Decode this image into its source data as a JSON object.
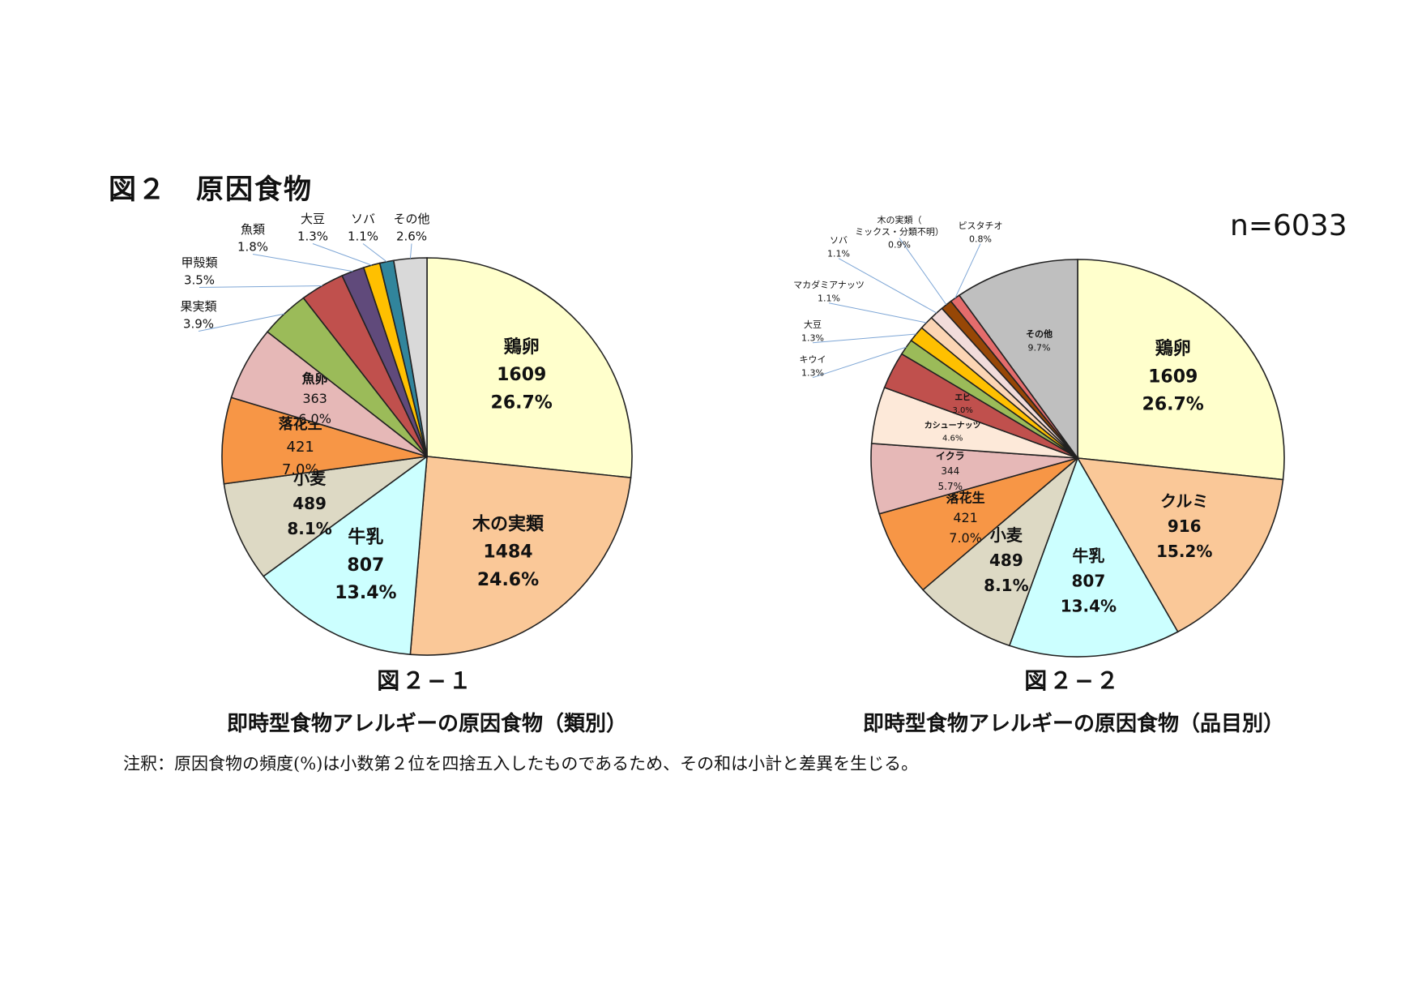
{
  "heading": "図２　原因食物",
  "n_label": "n=6033",
  "footnote": "注釈：原因食物の頻度(%)は小数第２位を四捨五入したものであるため、その和は小計と差異を生じる。",
  "chart_data": [
    {
      "type": "pie",
      "figure_number": "図２−１",
      "title": "即時型食物アレルギーの原因食物（類別）",
      "slices": [
        {
          "name": "鶏卵",
          "count": "1609",
          "pct": "26.7%",
          "value": 26.7,
          "color": "#FFFFCC",
          "label": "inside"
        },
        {
          "name": "木の実類",
          "count": "1484",
          "pct": "24.6%",
          "value": 24.6,
          "color": "#FAC898",
          "label": "inside"
        },
        {
          "name": "牛乳",
          "count": "807",
          "pct": "13.4%",
          "value": 13.4,
          "color": "#CCFFFF",
          "label": "inside"
        },
        {
          "name": "小麦",
          "count": "489",
          "pct": "8.1%",
          "value": 8.1,
          "color": "#DDD9C4",
          "label": "inside"
        },
        {
          "name": "落花生",
          "count": "421",
          "pct": "7.0%",
          "value": 7.0,
          "color": "#F79646",
          "label": "inside"
        },
        {
          "name": "魚卵",
          "count": "363",
          "pct": "6.0%",
          "value": 6.0,
          "color": "#E6B8B7",
          "label": "inside"
        },
        {
          "name": "果実類",
          "count": "",
          "pct": "3.9%",
          "value": 3.9,
          "color": "#9BBB59",
          "label": "outside"
        },
        {
          "name": "甲殻類",
          "count": "",
          "pct": "3.5%",
          "value": 3.5,
          "color": "#C0504D",
          "label": "outside"
        },
        {
          "name": "魚類",
          "count": "",
          "pct": "1.8%",
          "value": 1.8,
          "color": "#604A7B",
          "label": "outside"
        },
        {
          "name": "大豆",
          "count": "",
          "pct": "1.3%",
          "value": 1.3,
          "color": "#FFC000",
          "label": "outside"
        },
        {
          "name": "ソバ",
          "count": "",
          "pct": "1.1%",
          "value": 1.1,
          "color": "#31859C",
          "label": "outside"
        },
        {
          "name": "その他",
          "count": "",
          "pct": "2.6%",
          "value": 2.6,
          "color": "#D9D9D9",
          "label": "outside"
        }
      ]
    },
    {
      "type": "pie",
      "figure_number": "図２−２",
      "title": "即時型食物アレルギーの原因食物（品目別）",
      "slices": [
        {
          "name": "鶏卵",
          "count": "1609",
          "pct": "26.7%",
          "value": 26.7,
          "color": "#FFFFCC",
          "label": "inside"
        },
        {
          "name": "クルミ",
          "count": "916",
          "pct": "15.2%",
          "value": 15.2,
          "color": "#FAC898",
          "label": "inside"
        },
        {
          "name": "牛乳",
          "count": "807",
          "pct": "13.4%",
          "value": 13.4,
          "color": "#CCFFFF",
          "label": "inside"
        },
        {
          "name": "小麦",
          "count": "489",
          "pct": "8.1%",
          "value": 8.1,
          "color": "#DDD9C4",
          "label": "inside"
        },
        {
          "name": "落花生",
          "count": "421",
          "pct": "7.0%",
          "value": 7.0,
          "color": "#F79646",
          "label": "inside"
        },
        {
          "name": "イクラ",
          "count": "344",
          "pct": "5.7%",
          "value": 5.7,
          "color": "#E6B8B7",
          "label": "inside"
        },
        {
          "name": "カシューナッツ",
          "count": "",
          "pct": "4.6%",
          "value": 4.6,
          "color": "#FDE9D9",
          "label": "inside"
        },
        {
          "name": "エビ",
          "count": "",
          "pct": "3.0%",
          "value": 3.0,
          "color": "#C0504D",
          "label": "inside"
        },
        {
          "name": "キウイ",
          "count": "",
          "pct": "1.3%",
          "value": 1.3,
          "color": "#9BBB59",
          "label": "outside"
        },
        {
          "name": "大豆",
          "count": "",
          "pct": "1.3%",
          "value": 1.3,
          "color": "#FFC000",
          "label": "outside"
        },
        {
          "name": "マカダミアナッツ",
          "count": "",
          "pct": "1.1%",
          "value": 1.1,
          "color": "#FCD5B4",
          "label": "outside"
        },
        {
          "name": "ソバ",
          "count": "",
          "pct": "1.1%",
          "value": 1.1,
          "color": "#F2DCDB",
          "label": "outside"
        },
        {
          "name": "木の実類（ミックス・分類不明）",
          "count": "",
          "pct": "0.9%",
          "value": 0.9,
          "color": "#974706",
          "label": "outside"
        },
        {
          "name": "ピスタチオ",
          "count": "",
          "pct": "0.8%",
          "value": 0.8,
          "color": "#E46C6C",
          "label": "outside"
        },
        {
          "name": "その他",
          "count": "",
          "pct": "9.7%",
          "value": 9.7,
          "color": "#BFBFBF",
          "label": "inside"
        }
      ]
    }
  ]
}
